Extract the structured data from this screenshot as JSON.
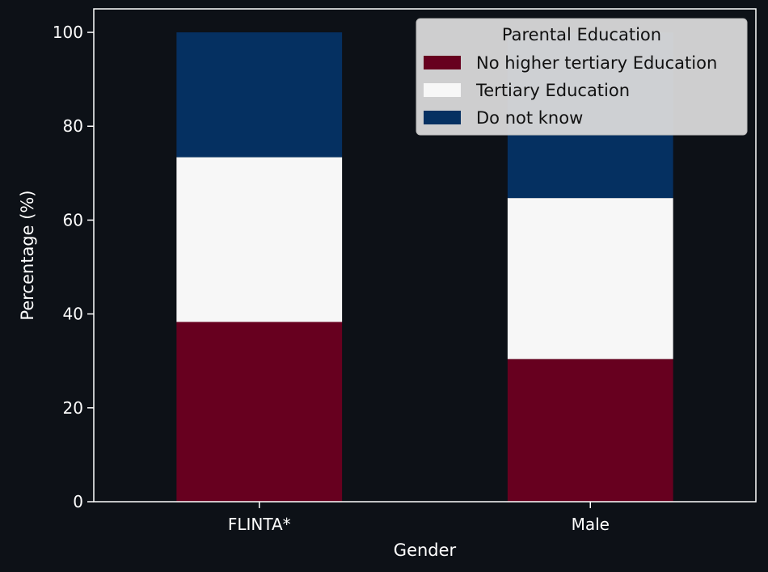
{
  "chart_data": {
    "type": "bar",
    "stacked": true,
    "categories": [
      "FLINTA*",
      "Male"
    ],
    "series": [
      {
        "name": "No higher tertiary Education",
        "values": [
          38.3,
          30.4
        ],
        "color": "#67001f"
      },
      {
        "name": "Tertiary Education",
        "values": [
          35.1,
          34.3
        ],
        "color": "#f7f7f7"
      },
      {
        "name": "Do not know",
        "values": [
          26.6,
          35.3
        ],
        "color": "#053061"
      }
    ],
    "xlabel": "Gender",
    "ylabel": "Percentage (%)",
    "ylim": [
      0,
      105
    ],
    "yticks": [
      0,
      20,
      40,
      60,
      80,
      100
    ],
    "grid": false,
    "legend": {
      "title": "Parental Education",
      "placement": "top-right"
    },
    "colors": {
      "background": "#0d1117",
      "axes": "#ffffff",
      "legend_bg": "#d9d9d9"
    }
  }
}
